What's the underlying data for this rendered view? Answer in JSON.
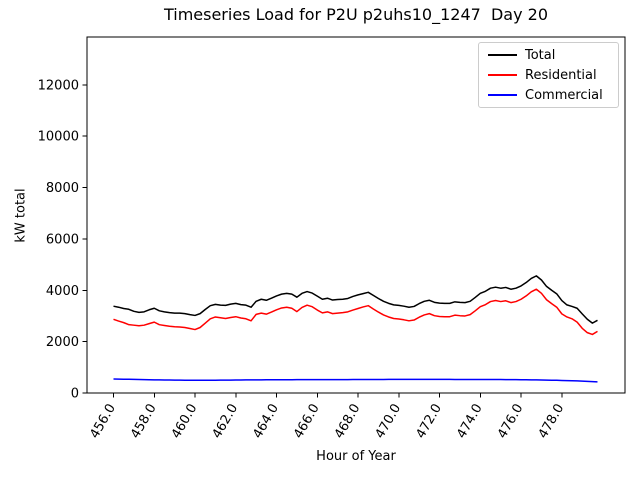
{
  "chart_data": {
    "type": "line",
    "title": "Timeseries Load for P2U p2uhs10_1247  Day 20",
    "xlabel": "Hour of Year",
    "ylabel": "kW total",
    "xlim": [
      454.7,
      481.1
    ],
    "ylim": [
      0,
      13860
    ],
    "grid": false,
    "legend_position": "upper right",
    "xticks": [
      456,
      458,
      460,
      462,
      464,
      466,
      468,
      470,
      472,
      474,
      476,
      478
    ],
    "xtick_labels": [
      "456.0",
      "458.0",
      "460.0",
      "462.0",
      "464.0",
      "466.0",
      "468.0",
      "470.0",
      "472.0",
      "474.0",
      "476.0",
      "478.0"
    ],
    "yticks": [
      0,
      2000,
      4000,
      6000,
      8000,
      10000,
      12000
    ],
    "ytick_labels": [
      "0",
      "2000",
      "4000",
      "6000",
      "8000",
      "10000",
      "12000"
    ],
    "x_start": 456.0,
    "x_step": 0.25,
    "series": [
      {
        "name": "Total",
        "color": "#000000",
        "values": [
          3380,
          3340,
          3290,
          3260,
          3180,
          3140,
          3160,
          3240,
          3300,
          3200,
          3160,
          3130,
          3110,
          3110,
          3090,
          3050,
          3020,
          3090,
          3250,
          3400,
          3450,
          3420,
          3410,
          3460,
          3490,
          3440,
          3420,
          3340,
          3570,
          3650,
          3610,
          3690,
          3780,
          3850,
          3880,
          3850,
          3730,
          3880,
          3950,
          3890,
          3770,
          3650,
          3690,
          3620,
          3640,
          3650,
          3680,
          3760,
          3820,
          3870,
          3920,
          3800,
          3680,
          3570,
          3490,
          3430,
          3410,
          3380,
          3340,
          3370,
          3480,
          3570,
          3610,
          3530,
          3500,
          3490,
          3490,
          3550,
          3530,
          3520,
          3570,
          3720,
          3880,
          3960,
          4080,
          4120,
          4080,
          4110,
          4040,
          4080,
          4170,
          4300,
          4460,
          4560,
          4400,
          4150,
          4000,
          3860,
          3600,
          3430,
          3370,
          3300,
          3080,
          2870,
          2720,
          2830
        ]
      },
      {
        "name": "Residential",
        "color": "#ff0000",
        "values": [
          2870,
          2800,
          2740,
          2660,
          2640,
          2620,
          2640,
          2700,
          2760,
          2660,
          2630,
          2600,
          2580,
          2570,
          2550,
          2510,
          2470,
          2550,
          2720,
          2890,
          2960,
          2930,
          2900,
          2940,
          2970,
          2920,
          2890,
          2810,
          3060,
          3110,
          3070,
          3150,
          3240,
          3310,
          3340,
          3300,
          3170,
          3330,
          3420,
          3360,
          3230,
          3120,
          3160,
          3090,
          3110,
          3130,
          3160,
          3230,
          3290,
          3350,
          3400,
          3270,
          3150,
          3040,
          2960,
          2900,
          2880,
          2850,
          2810,
          2840,
          2950,
          3040,
          3090,
          3010,
          2980,
          2970,
          2970,
          3030,
          3010,
          3000,
          3050,
          3200,
          3360,
          3440,
          3560,
          3600,
          3560,
          3590,
          3520,
          3560,
          3650,
          3780,
          3940,
          4040,
          3880,
          3630,
          3480,
          3340,
          3080,
          2960,
          2890,
          2760,
          2520,
          2350,
          2280,
          2400
        ]
      },
      {
        "name": "Commercial",
        "color": "#0000ff",
        "values": [
          545,
          541,
          537,
          533,
          529,
          525,
          521,
          517,
          513,
          510,
          507,
          504,
          501,
          499,
          497,
          496,
          495,
          495,
          495,
          496,
          497,
          499,
          501,
          503,
          505,
          507,
          509,
          510,
          512,
          513,
          514,
          515,
          516,
          517,
          518,
          518,
          519,
          519,
          520,
          520,
          520,
          521,
          521,
          522,
          522,
          523,
          523,
          524,
          525,
          526,
          527,
          527,
          528,
          528,
          529,
          529,
          530,
          530,
          530,
          530,
          530,
          530,
          530,
          530,
          529,
          529,
          529,
          528,
          528,
          528,
          527,
          527,
          527,
          526,
          526,
          525,
          524,
          523,
          522,
          520,
          518,
          516,
          513,
          510,
          506,
          502,
          498,
          494,
          489,
          483,
          477,
          470,
          460,
          452,
          444,
          435
        ]
      }
    ]
  }
}
